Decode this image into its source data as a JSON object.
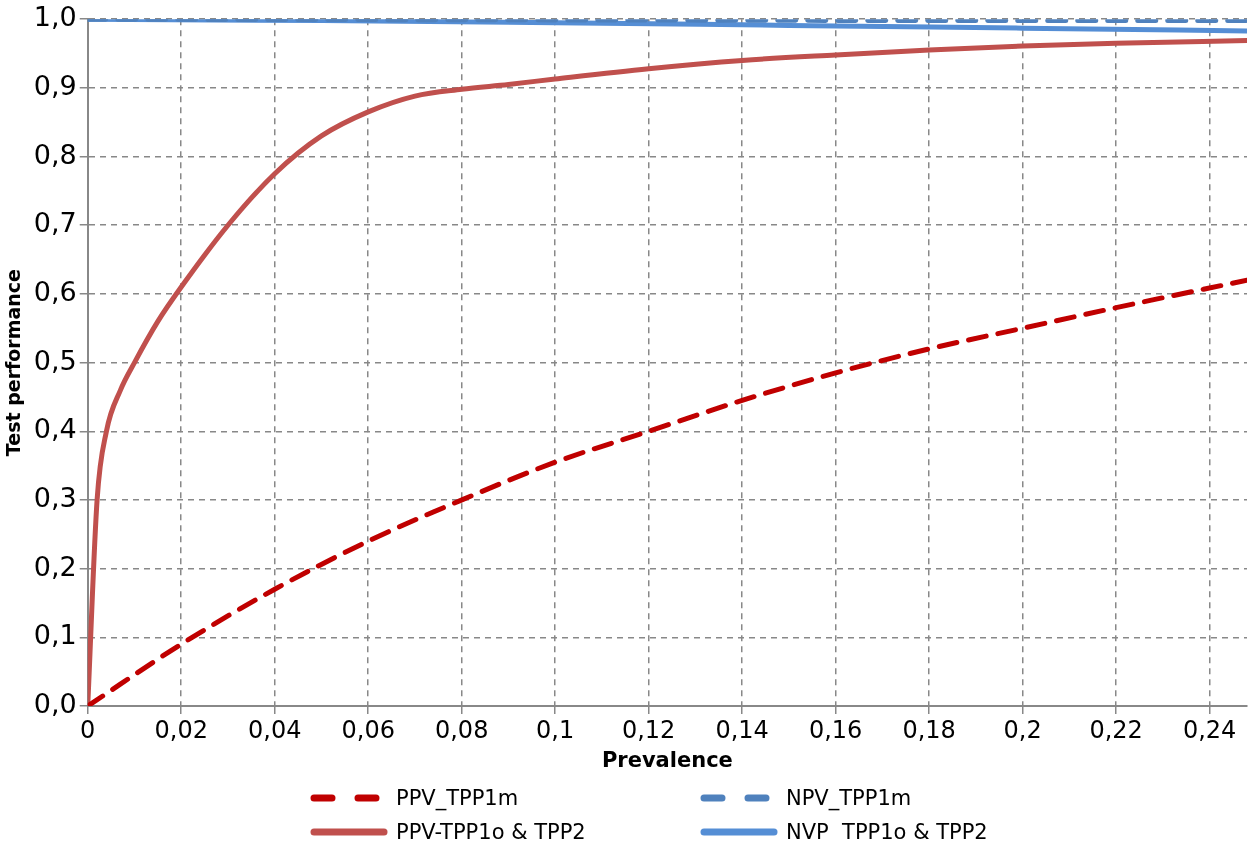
{
  "chart_data": {
    "type": "line",
    "xlabel": "Prevalence",
    "ylabel": "Test performance",
    "xlim": [
      0,
      0.248
    ],
    "ylim": [
      0,
      1
    ],
    "xticks": [
      0,
      {
        "value": 0.02,
        "label": "0,02"
      },
      {
        "value": 0.04,
        "label": "0,04"
      },
      {
        "value": 0.06,
        "label": "0,06"
      },
      {
        "value": 0.08,
        "label": "0,08"
      },
      {
        "value": 0.1,
        "label": "0,1"
      },
      {
        "value": 0.12,
        "label": "0,12"
      },
      {
        "value": 0.14,
        "label": "0,14"
      },
      {
        "value": 0.16,
        "label": "0,16"
      },
      {
        "value": 0.18,
        "label": "0,18"
      },
      {
        "value": 0.2,
        "label": "0,2"
      },
      {
        "value": 0.22,
        "label": "0,22"
      },
      {
        "value": 0.24,
        "label": "0,24"
      }
    ],
    "yticks": [
      {
        "value": 0,
        "label": "0,0"
      },
      {
        "value": 0.1,
        "label": "0,1"
      },
      {
        "value": 0.2,
        "label": "0,2"
      },
      {
        "value": 0.3,
        "label": "0,3"
      },
      {
        "value": 0.4,
        "label": "0,4"
      },
      {
        "value": 0.5,
        "label": "0,5"
      },
      {
        "value": 0.6,
        "label": "0,6"
      },
      {
        "value": 0.7,
        "label": "0,7"
      },
      {
        "value": 0.8,
        "label": "0,8"
      },
      {
        "value": 0.9,
        "label": "0,9"
      },
      {
        "value": 1,
        "label": "1,0"
      }
    ],
    "grid": true,
    "legend": "bottom",
    "marker": "none",
    "series": [
      {
        "name": "PPV_TPP1m",
        "color": "#c00000",
        "line_style": "dashed",
        "x": [
          0,
          0.02,
          0.04,
          0.06,
          0.08,
          0.1,
          0.12,
          0.14,
          0.16,
          0.18,
          0.2,
          0.22,
          0.248
        ],
        "values": [
          0,
          0.09,
          0.17,
          0.24,
          0.3,
          0.355,
          0.4,
          0.445,
          0.485,
          0.52,
          0.55,
          0.58,
          0.62
        ]
      },
      {
        "name": "NPV_TPP1m",
        "color": "#4f81bd",
        "line_style": "dashed",
        "x": [
          0,
          0.1,
          0.2,
          0.248
        ],
        "values": [
          1,
          0.999,
          0.998,
          0.998
        ]
      },
      {
        "name": "PPV-TPP1o & TPP2",
        "color": "#c0504d",
        "line_style": "solid",
        "x": [
          0,
          0.002,
          0.004,
          0.007,
          0.01,
          0.015,
          0.02,
          0.03,
          0.04,
          0.05,
          0.06,
          0.07,
          0.08,
          0.09,
          0.1,
          0.12,
          0.14,
          0.16,
          0.18,
          0.2,
          0.22,
          0.248
        ],
        "values": [
          0,
          0.3,
          0.4,
          0.46,
          0.5,
          0.56,
          0.61,
          0.7,
          0.775,
          0.83,
          0.865,
          0.888,
          0.898,
          0.905,
          0.913,
          0.928,
          0.94,
          0.948,
          0.955,
          0.961,
          0.965,
          0.969
        ]
      },
      {
        "name": "NVP  TPP1o & TPP2",
        "color": "#558ed5",
        "line_style": "solid",
        "x": [
          0,
          0.05,
          0.1,
          0.15,
          0.2,
          0.248
        ],
        "values": [
          1,
          0.998,
          0.995,
          0.991,
          0.987,
          0.983
        ]
      }
    ]
  }
}
